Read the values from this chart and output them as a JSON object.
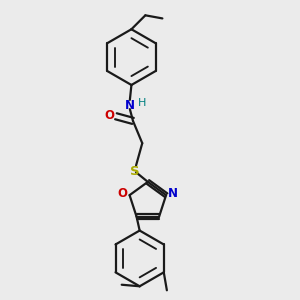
{
  "bg_color": "#ebebeb",
  "bond_color": "#1a1a1a",
  "N_color": "#0000cc",
  "H_color": "#008080",
  "O_color": "#cc0000",
  "S_color": "#aaaa00",
  "line_width": 1.6,
  "fig_size": [
    3.0,
    3.0
  ],
  "dpi": 100,
  "xlim": [
    0.05,
    0.75
  ],
  "ylim": [
    0.02,
    0.98
  ]
}
